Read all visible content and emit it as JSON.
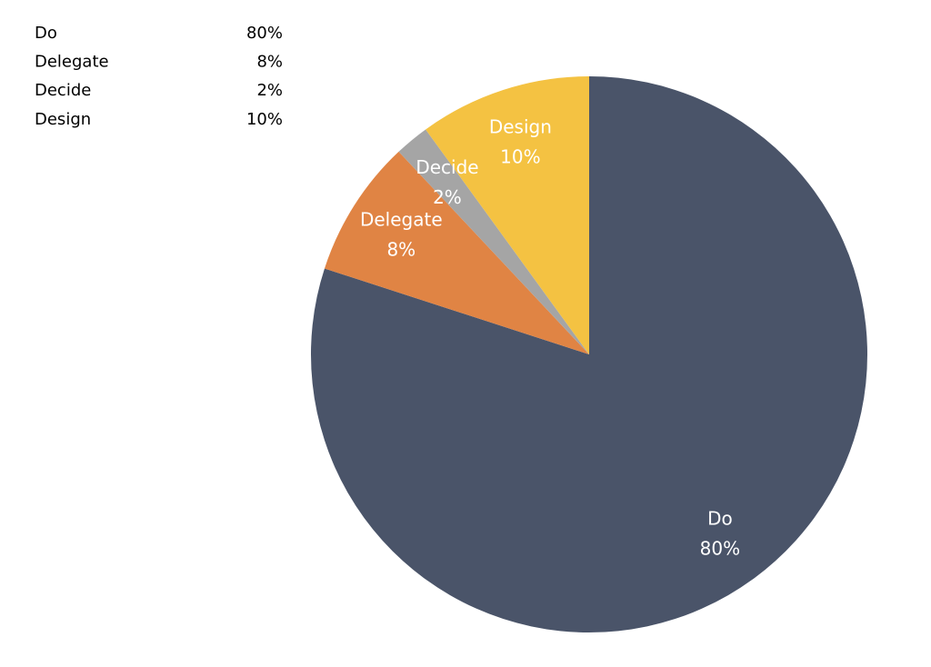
{
  "chart_data": {
    "type": "pie",
    "categories": [
      "Do",
      "Delegate",
      "Decide",
      "Design"
    ],
    "values": [
      80,
      8,
      2,
      10
    ],
    "value_labels": [
      "80%",
      "8%",
      "2%",
      "10%"
    ],
    "colors": [
      "#4a5469",
      "#e08444",
      "#a5a5a5",
      "#f4c242"
    ]
  }
}
